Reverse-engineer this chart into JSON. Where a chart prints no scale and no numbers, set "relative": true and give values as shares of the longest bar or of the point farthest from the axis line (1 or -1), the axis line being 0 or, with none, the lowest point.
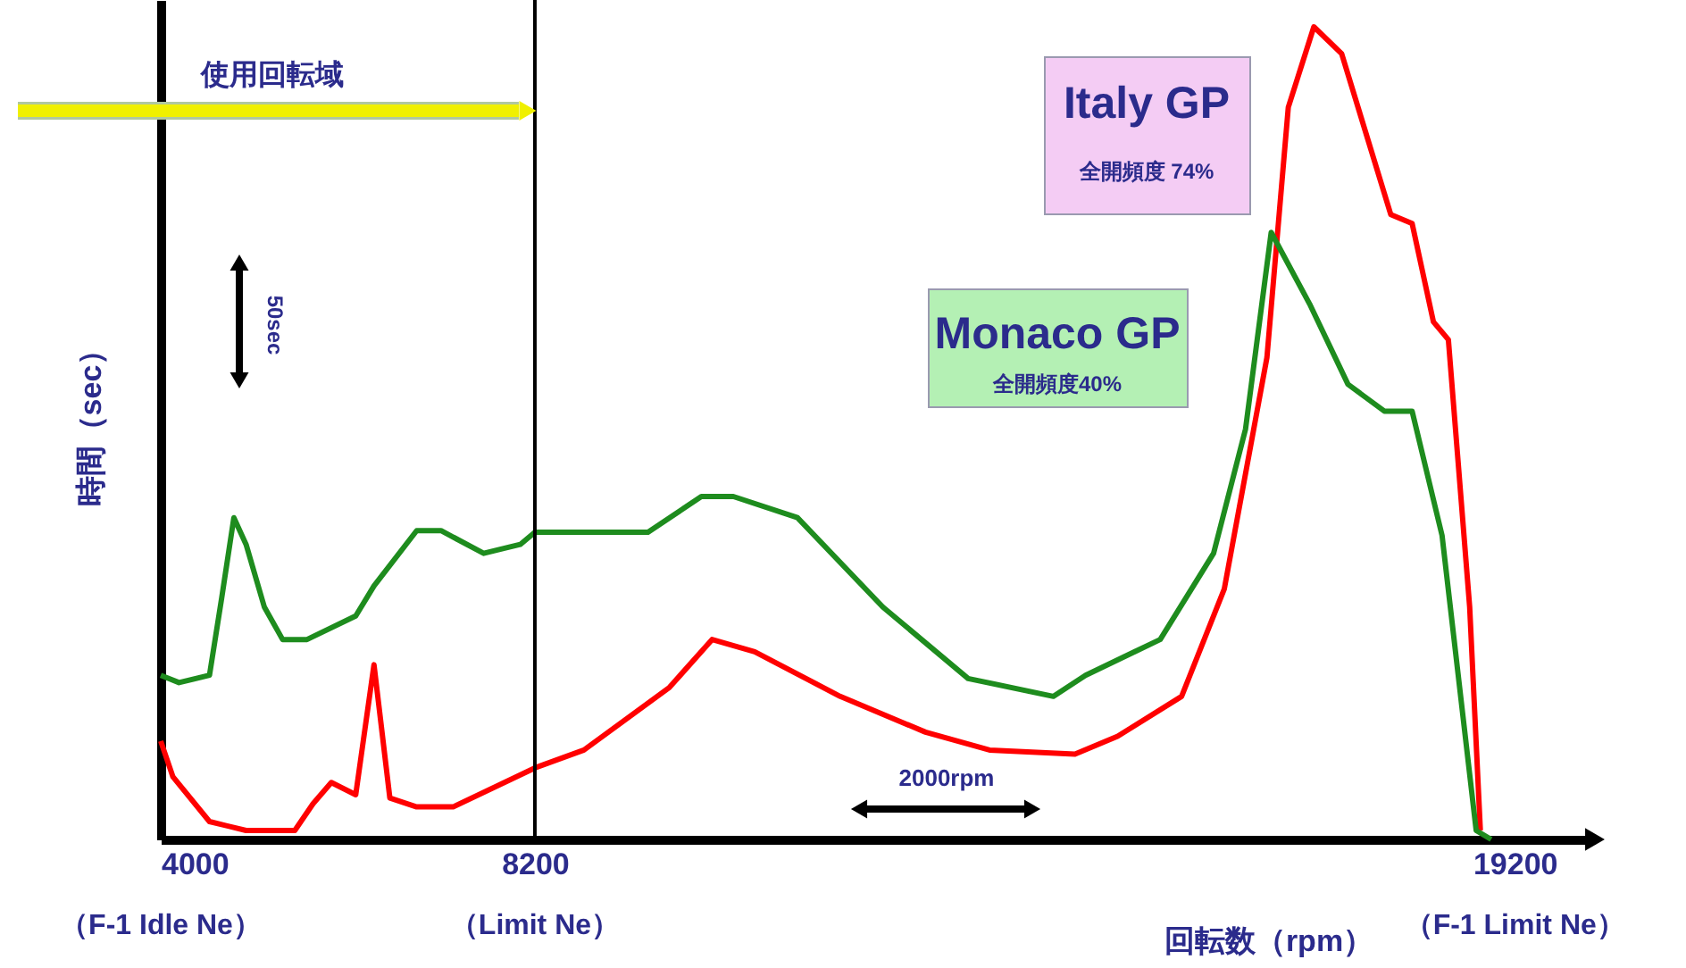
{
  "chart_data": {
    "type": "line",
    "relative": true,
    "xlabel": "回転数（rpm）",
    "ylabel": "時間（sec）",
    "xlim": [
      4000,
      20100
    ],
    "xticks": [
      4000,
      8200,
      19200
    ],
    "ref_lines": [
      {
        "axis": "x",
        "value": 8200,
        "color": "#000000"
      }
    ],
    "annotations": [
      "使用回転域",
      "全開頻度 74%",
      "全開頻度40%",
      "50sec",
      "2000rpm",
      "（F-1 Idle Ne）",
      "（Limit Ne）",
      "（F-1 Limit Ne）"
    ],
    "series": [
      {
        "name": "Italy GP",
        "color": "#ff0000",
        "x": [
          4000,
          4137,
          4547,
          4958,
          5505,
          5710,
          5915,
          6189,
          6394,
          6572,
          6873,
          7283,
          8200,
          8751,
          9710,
          10189,
          10668,
          11627,
          12585,
          13304,
          14263,
          14742,
          15460,
          15939,
          16418,
          16658,
          16945,
          17257,
          17808,
          18048,
          18287,
          18455,
          18694,
          18814
        ],
        "values": [
          0.121,
          0.077,
          0.022,
          0.011,
          0.011,
          0.044,
          0.07,
          0.055,
          0.215,
          0.051,
          0.04,
          0.04,
          0.088,
          0.11,
          0.187,
          0.246,
          0.231,
          0.176,
          0.132,
          0.11,
          0.105,
          0.127,
          0.176,
          0.308,
          0.593,
          0.901,
          1,
          0.967,
          0.769,
          0.758,
          0.637,
          0.615,
          0.286,
          0.011
        ]
      },
      {
        "name": "Monaco GP",
        "color": "#1e8c1e",
        "x": [
          4000,
          4205,
          4547,
          4684,
          4821,
          4958,
          5163,
          5368,
          5642,
          6189,
          6394,
          6873,
          7146,
          7625,
          8036,
          8200,
          9470,
          10069,
          10428,
          11147,
          12106,
          13064,
          14022,
          14382,
          15220,
          15819,
          16178,
          16466,
          16897,
          17328,
          17736,
          18048,
          18384,
          18767,
          18935
        ],
        "values": [
          0.202,
          0.193,
          0.202,
          0.297,
          0.396,
          0.363,
          0.286,
          0.246,
          0.246,
          0.275,
          0.312,
          0.38,
          0.38,
          0.352,
          0.363,
          0.378,
          0.378,
          0.422,
          0.422,
          0.396,
          0.286,
          0.198,
          0.176,
          0.202,
          0.246,
          0.352,
          0.505,
          0.747,
          0.659,
          0.56,
          0.527,
          0.527,
          0.374,
          0.011,
          0
        ]
      }
    ]
  }
}
